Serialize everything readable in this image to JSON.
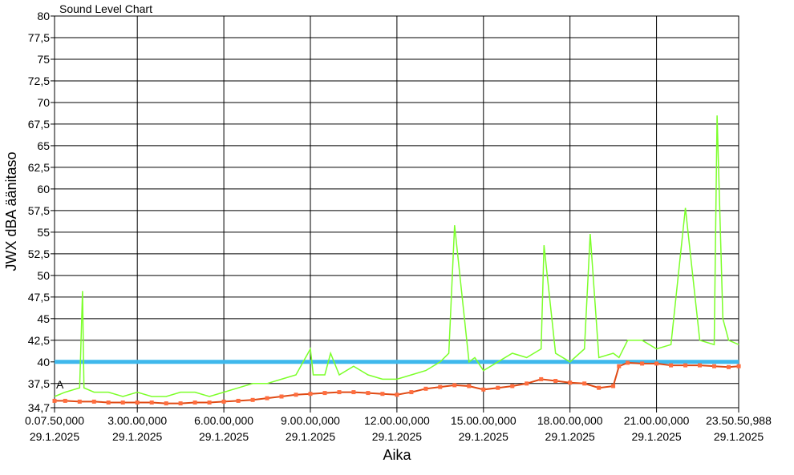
{
  "chart_data": {
    "type": "line",
    "title": "Sound Level Chart",
    "xlabel": "Aika",
    "ylabel": "JWX dBA äänitaso",
    "ylim": [
      34.7,
      80
    ],
    "xlim_hours": [
      0.1306,
      23.8475
    ],
    "y_ticks": [
      "80",
      "77,5",
      "75",
      "72,5",
      "70",
      "67,5",
      "65",
      "62,5",
      "60",
      "57,5",
      "55",
      "52,5",
      "50",
      "47,5",
      "45",
      "42,5",
      "40",
      "37,5",
      "34,7"
    ],
    "y_tick_values": [
      80,
      77.5,
      75,
      72.5,
      70,
      67.5,
      65,
      62.5,
      60,
      57.5,
      55,
      52.5,
      50,
      47.5,
      45,
      42.5,
      40,
      37.5,
      34.7
    ],
    "x_ticks": [
      {
        "time": "0.07.50,000",
        "date": "29.1.2025",
        "hour": 0.1306
      },
      {
        "time": "3.00.00,000",
        "date": "29.1.2025",
        "hour": 3
      },
      {
        "time": "6.00.00,000",
        "date": "29.1.2025",
        "hour": 6
      },
      {
        "time": "9.00.00,000",
        "date": "29.1.2025",
        "hour": 9
      },
      {
        "time": "12.00.00,000",
        "date": "29.1.2025",
        "hour": 12
      },
      {
        "time": "15.00.00,000",
        "date": "29.1.2025",
        "hour": 15
      },
      {
        "time": "18.00.00,000",
        "date": "29.1.2025",
        "hour": 18
      },
      {
        "time": "21.00.00,000",
        "date": "29.1.2025",
        "hour": 21
      },
      {
        "time": "23.50.50,988",
        "date": "29.1.2025",
        "hour": 23.8475
      }
    ],
    "threshold": {
      "value": 40,
      "color": "#3fb8ec"
    },
    "marker_label": "A",
    "grid": true,
    "colors": {
      "peak_line": "#7cff2a",
      "level_line": "#e04a14",
      "level_marker": "#ff6e3f",
      "grid": "#000000"
    },
    "series": [
      {
        "role": "peak",
        "x": [
          0.13,
          0.5,
          1.0,
          1.1,
          1.15,
          1.5,
          2.0,
          2.5,
          3.0,
          3.5,
          4.0,
          4.5,
          5.0,
          5.5,
          6.0,
          6.5,
          7.0,
          7.5,
          8.0,
          8.5,
          9.0,
          9.1,
          9.5,
          9.7,
          10.0,
          10.5,
          11.0,
          11.5,
          12.0,
          12.5,
          13.0,
          13.5,
          13.8,
          14.0,
          14.5,
          14.7,
          15.0,
          15.5,
          16.0,
          16.5,
          17.0,
          17.1,
          17.5,
          18.0,
          18.5,
          18.7,
          19.0,
          19.5,
          19.7,
          20.0,
          20.5,
          21.0,
          21.5,
          22.0,
          22.5,
          23.0,
          23.1,
          23.3,
          23.5,
          23.85
        ],
        "y": [
          36.0,
          36.5,
          37.0,
          48.2,
          37.0,
          36.5,
          36.5,
          36.0,
          36.5,
          36.0,
          36.0,
          36.5,
          36.5,
          36.0,
          36.5,
          37.0,
          37.5,
          37.5,
          38.0,
          38.5,
          41.5,
          38.5,
          38.5,
          41.0,
          38.5,
          39.5,
          38.5,
          38.0,
          38.0,
          38.5,
          39.0,
          40.0,
          41.0,
          55.8,
          40.0,
          40.5,
          39.0,
          40.0,
          41.0,
          40.5,
          41.5,
          53.5,
          41.0,
          40.0,
          41.5,
          54.8,
          40.5,
          41.0,
          40.5,
          42.5,
          42.5,
          41.5,
          42.0,
          57.8,
          42.5,
          42.0,
          68.5,
          45.0,
          42.5,
          42.0
        ]
      },
      {
        "role": "level",
        "x": [
          0.13,
          0.5,
          1.0,
          1.5,
          2.0,
          2.5,
          3.0,
          3.5,
          4.0,
          4.5,
          5.0,
          5.5,
          6.0,
          6.5,
          7.0,
          7.5,
          8.0,
          8.5,
          9.0,
          9.5,
          10.0,
          10.5,
          11.0,
          11.5,
          12.0,
          12.5,
          13.0,
          13.5,
          14.0,
          14.5,
          15.0,
          15.5,
          16.0,
          16.5,
          17.0,
          17.5,
          18.0,
          18.5,
          19.0,
          19.5,
          19.7,
          20.0,
          20.5,
          21.0,
          21.5,
          22.0,
          22.5,
          23.0,
          23.5,
          23.85
        ],
        "y": [
          35.5,
          35.5,
          35.4,
          35.4,
          35.3,
          35.3,
          35.3,
          35.3,
          35.2,
          35.2,
          35.3,
          35.3,
          35.4,
          35.5,
          35.6,
          35.8,
          36.0,
          36.2,
          36.3,
          36.4,
          36.5,
          36.5,
          36.4,
          36.3,
          36.2,
          36.5,
          36.9,
          37.1,
          37.3,
          37.2,
          36.8,
          37.0,
          37.2,
          37.5,
          38.0,
          37.8,
          37.6,
          37.5,
          37.0,
          37.2,
          39.5,
          39.9,
          39.8,
          39.8,
          39.6,
          39.6,
          39.6,
          39.5,
          39.4,
          39.5
        ]
      }
    ]
  }
}
